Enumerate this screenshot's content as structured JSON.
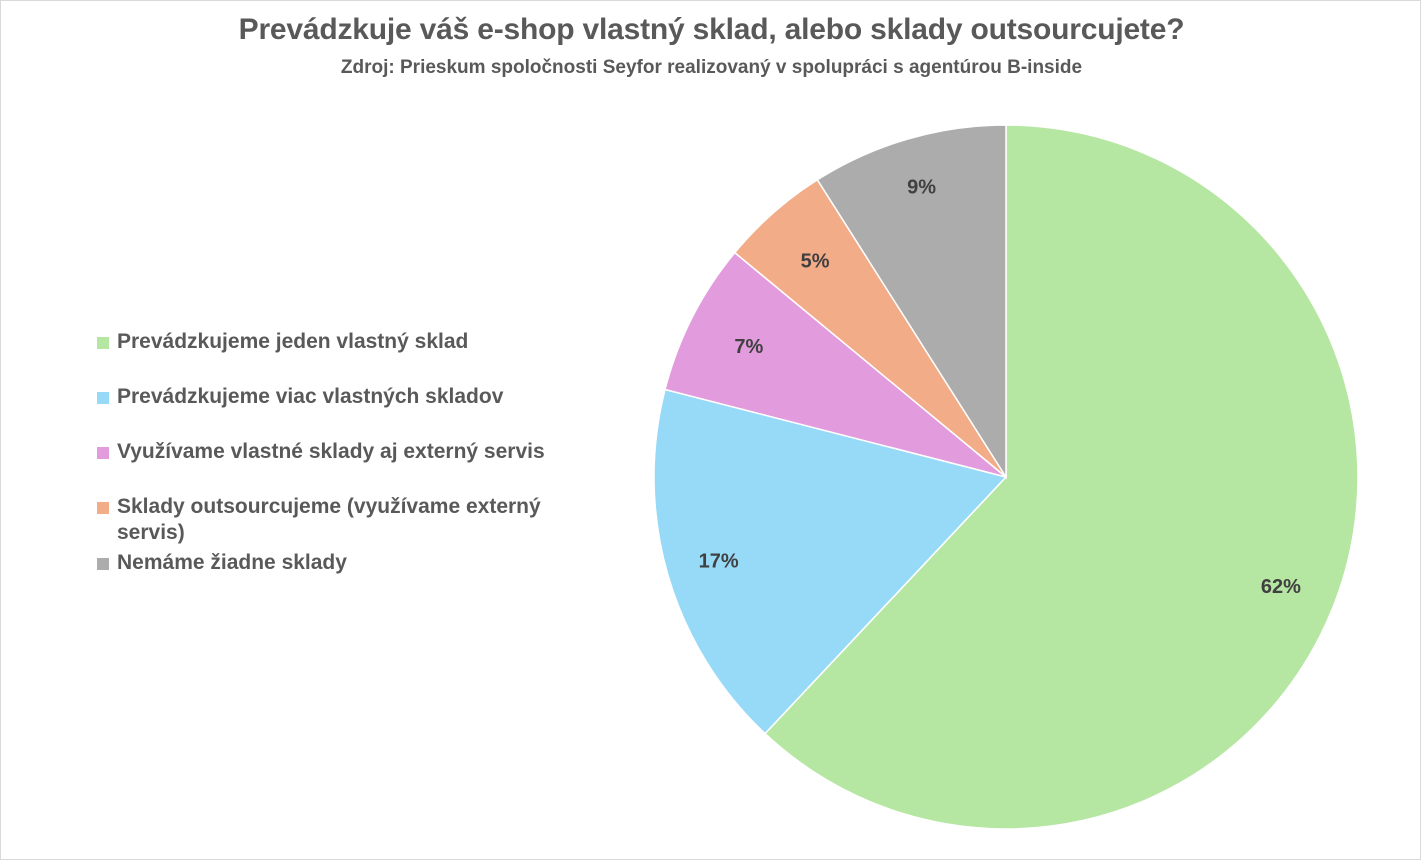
{
  "chart_data": {
    "type": "pie",
    "title": "Prevádzkuje váš e-shop vlastný sklad, alebo sklady outsourcujete?",
    "subtitle": "Zdroj: Prieskum spoločnosti Seyfor realizovaný v spolupráci s agentúrou B-inside",
    "legend_position": "left",
    "slices": [
      {
        "label": "Prevádzkujeme jeden vlastný sklad",
        "value": 62,
        "display": "62%",
        "color": "#b5e6a2"
      },
      {
        "label": "Prevádzkujeme viac vlastných skladov",
        "value": 17,
        "display": "17%",
        "color": "#97daf8"
      },
      {
        "label": "Využívame vlastné sklady aj externý servis",
        "value": 7,
        "display": "7%",
        "color": "#e29cdd"
      },
      {
        "label": "Sklady outsourcujeme (využívame externý servis)",
        "value": 5,
        "display": "5%",
        "color": "#f2ac88"
      },
      {
        "label": "Nemáme žiadne sklady",
        "value": 9,
        "display": "9%",
        "color": "#acacac"
      }
    ]
  }
}
